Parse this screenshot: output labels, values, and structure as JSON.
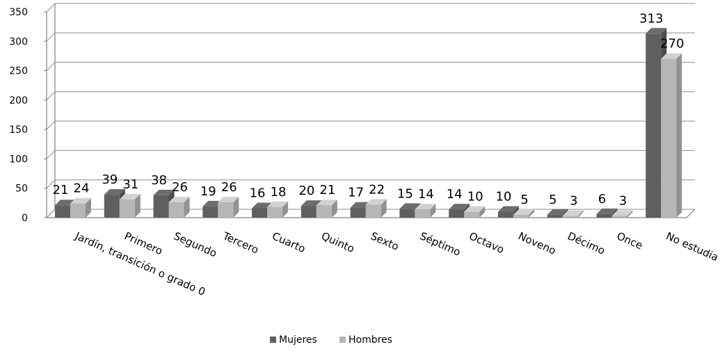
{
  "chart_data": {
    "type": "bar",
    "title": "",
    "xlabel": "",
    "ylabel": "",
    "ylim": [
      0,
      350
    ],
    "yticks": [
      0,
      50,
      100,
      150,
      200,
      250,
      300,
      350
    ],
    "grid": true,
    "legend_position": "bottom",
    "categories": [
      "Jardín, transición o grado 0",
      "Primero",
      "Segundo",
      "Tercero",
      "Cuarto",
      "Quinto",
      "Sexto",
      "Séptimo",
      "Octavo",
      "Noveno",
      "Décimo",
      "Once",
      "No estudia"
    ],
    "series": [
      {
        "name": "Mujeres",
        "color": "#5f5f5f",
        "values": [
          21,
          39,
          38,
          19,
          16,
          20,
          17,
          15,
          14,
          10,
          5,
          6,
          313
        ]
      },
      {
        "name": "Hombres",
        "color": "#b6b6b6",
        "values": [
          24,
          31,
          26,
          26,
          18,
          21,
          22,
          14,
          10,
          5,
          3,
          3,
          270
        ]
      }
    ]
  }
}
